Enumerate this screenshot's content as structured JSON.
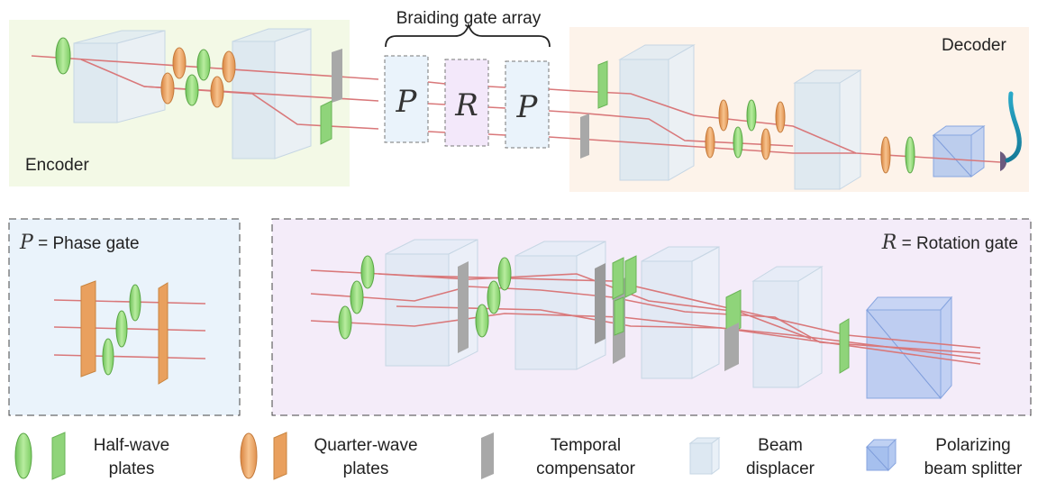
{
  "top": {
    "gate_array_label": "Braiding gate array",
    "encoder_label": "Encoder",
    "decoder_label": "Decoder",
    "gates": [
      "P",
      "R",
      "P"
    ]
  },
  "phase_panel": {
    "symbol": "P",
    "text": " = Phase gate"
  },
  "rotation_panel": {
    "symbol": "R",
    "text": " = Rotation gate"
  },
  "legend": [
    {
      "icon": "half-wave-plate-icon",
      "line1": "Half-wave",
      "line2": "plates"
    },
    {
      "icon": "quarter-wave-plate-icon",
      "line1": "Quarter-wave",
      "line2": "plates"
    },
    {
      "icon": "temporal-compensator-icon",
      "line1": "Temporal",
      "line2": "compensator"
    },
    {
      "icon": "beam-displacer-icon",
      "line1": "Beam",
      "line2": "displacer"
    },
    {
      "icon": "polarizing-beam-splitter-icon",
      "line1": "Polarizing",
      "line2": "beam splitter"
    }
  ],
  "colors": {
    "encoder_bg": "#f3f9e6",
    "decoder_bg": "#fdf3ea",
    "phase_bg": "#eaf3fb",
    "rotation_bg": "#f4ecf9",
    "beam": "#d9787a",
    "hwp": "#8fd47a",
    "qwp": "#e9a05e",
    "compensator": "#a8a8a8",
    "displacer": "#d8e6f2",
    "pbs": "#93b1e8"
  }
}
